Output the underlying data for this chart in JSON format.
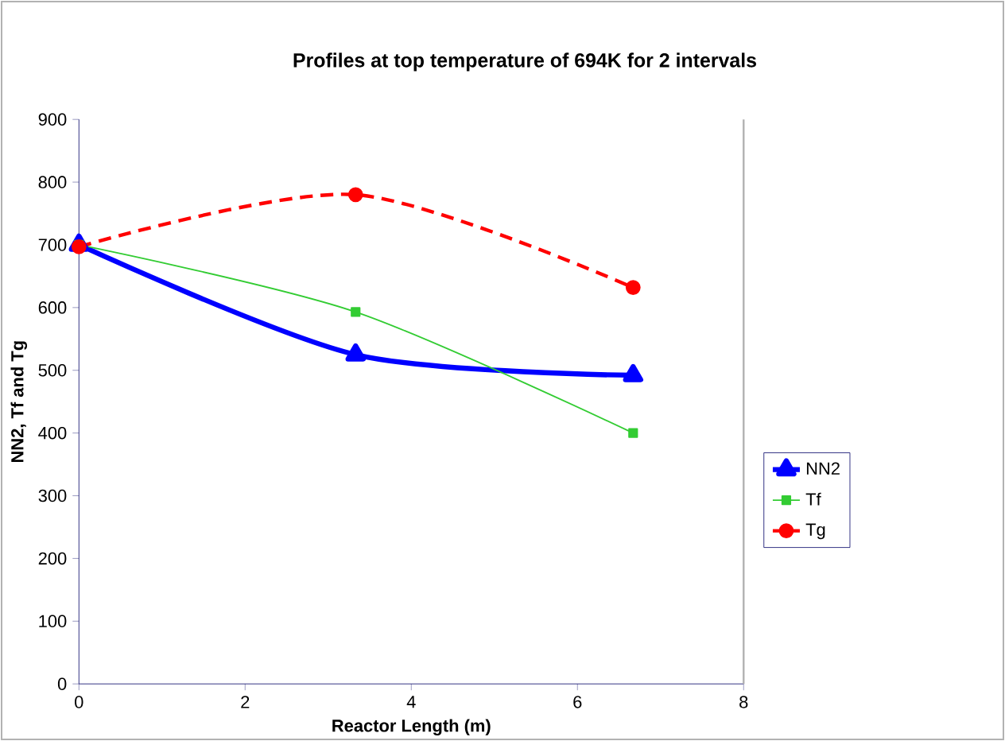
{
  "chart_data": {
    "type": "line",
    "title": "Profiles at top temperature of 694K for 2 intervals",
    "xlabel": "Reactor Length (m)",
    "ylabel": "NN2, Tf and Tg",
    "xlim": [
      0,
      8
    ],
    "xticks": [
      0,
      2,
      4,
      6,
      8
    ],
    "ylim": [
      0,
      900
    ],
    "yticks": [
      0,
      100,
      200,
      300,
      400,
      500,
      600,
      700,
      800,
      900
    ],
    "x": [
      0,
      3.33,
      6.67
    ],
    "grid": false,
    "legend": "right",
    "series": [
      {
        "name": "NN2",
        "color": "#0000ff",
        "marker": "triangle",
        "line_style": "solid",
        "values": [
          700,
          525,
          492
        ]
      },
      {
        "name": "Tf",
        "color": "#33cc33",
        "marker": "square",
        "line_style": "solid",
        "values": [
          700,
          593,
          400
        ]
      },
      {
        "name": "Tg",
        "color": "#ff0000",
        "marker": "circle",
        "line_style": "dashed",
        "values": [
          697,
          780,
          632
        ]
      }
    ]
  }
}
